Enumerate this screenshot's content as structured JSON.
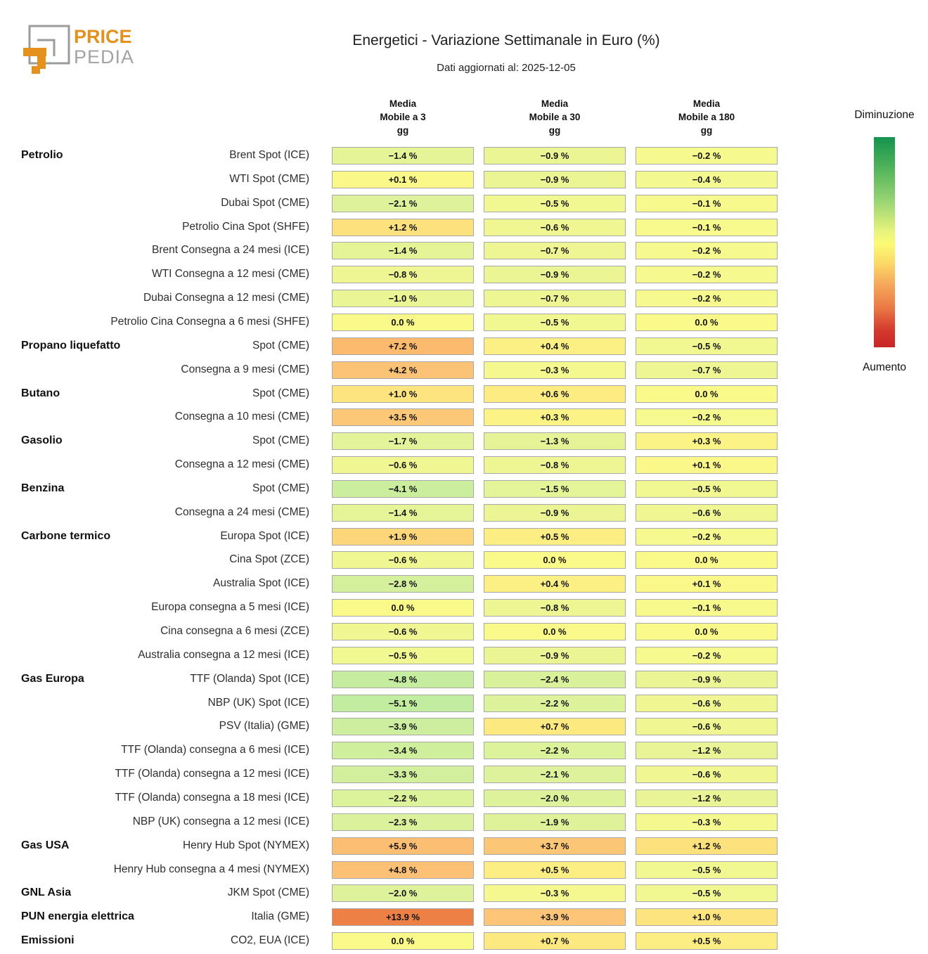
{
  "header": {
    "logo": {
      "brand_top": "PRICE",
      "brand_bottom": "PEDIA",
      "orange": "#e5911e",
      "gray": "#9b9b9b"
    },
    "title": "Energetici - Variazione Settimanale in Euro (%)",
    "subtitle": "Dati aggiornati al: 2025-12-05"
  },
  "legend": {
    "top_label": "Diminuzione",
    "bottom_label": "Aumento",
    "gradient_stops": [
      "#14934f 0%",
      "#4eb25a 14%",
      "#97d373 30%",
      "#e8f47c 45%",
      "#fbfa74 51%",
      "#fbd967 60%",
      "#f6a85a 70%",
      "#ea7a45 81%",
      "#d4392c 92%",
      "#c82526 100%"
    ]
  },
  "chart_data": {
    "type": "heatmap",
    "unit": "%",
    "columns": [
      "Media\nMobile a 3\ngg",
      "Media\nMobile a 30\ngg",
      "Media\nMobile a 180\ngg"
    ],
    "colormap": [
      [
        -8,
        "#a7e3a0"
      ],
      [
        -5,
        "#c3ec9f"
      ],
      [
        -3,
        "#d3f09d"
      ],
      [
        -2,
        "#def29b"
      ],
      [
        -1,
        "#eaf595"
      ],
      [
        -0.5,
        "#f1f791"
      ],
      [
        0,
        "#fafa8b"
      ],
      [
        0.5,
        "#fcee83"
      ],
      [
        1,
        "#fde47e"
      ],
      [
        2,
        "#fdd47a"
      ],
      [
        4,
        "#fcc477"
      ],
      [
        8,
        "#fbb76c"
      ],
      [
        11,
        "#f59d53"
      ],
      [
        14,
        "#ec7f44"
      ]
    ],
    "groups": [
      {
        "category": "Petrolio",
        "rows": [
          {
            "label": "Brent Spot (ICE)",
            "values": [
              -1.4,
              -0.9,
              -0.2
            ]
          },
          {
            "label": "WTI Spot (CME)",
            "values": [
              0.1,
              -0.9,
              -0.4
            ]
          },
          {
            "label": "Dubai Spot (CME)",
            "values": [
              -2.1,
              -0.5,
              -0.1
            ]
          },
          {
            "label": "Petrolio Cina Spot (SHFE)",
            "values": [
              1.2,
              -0.6,
              -0.1
            ]
          },
          {
            "label": "Brent Consegna a 24 mesi (ICE)",
            "values": [
              -1.4,
              -0.7,
              -0.2
            ]
          },
          {
            "label": "WTI Consegna a 12 mesi (CME)",
            "values": [
              -0.8,
              -0.9,
              -0.2
            ]
          },
          {
            "label": "Dubai Consegna a 12 mesi (CME)",
            "values": [
              -1.0,
              -0.7,
              -0.2
            ]
          },
          {
            "label": "Petrolio Cina Consegna a 6 mesi (SHFE)",
            "values": [
              0.0,
              -0.5,
              0.0
            ]
          }
        ]
      },
      {
        "category": "Propano liquefatto",
        "rows": [
          {
            "label": "Spot (CME)",
            "values": [
              7.2,
              0.4,
              -0.5
            ]
          },
          {
            "label": "Consegna a 9 mesi (CME)",
            "values": [
              4.2,
              -0.3,
              -0.7
            ]
          }
        ]
      },
      {
        "category": "Butano",
        "rows": [
          {
            "label": "Spot (CME)",
            "values": [
              1.0,
              0.6,
              0.0
            ]
          },
          {
            "label": "Consegna a 10 mesi (CME)",
            "values": [
              3.5,
              0.3,
              -0.2
            ]
          }
        ]
      },
      {
        "category": "Gasolio",
        "rows": [
          {
            "label": "Spot (CME)",
            "values": [
              -1.7,
              -1.3,
              0.3
            ]
          },
          {
            "label": "Consegna a 12 mesi (CME)",
            "values": [
              -0.6,
              -0.8,
              0.1
            ]
          }
        ]
      },
      {
        "category": "Benzina",
        "rows": [
          {
            "label": "Spot (CME)",
            "values": [
              -4.1,
              -1.5,
              -0.5
            ]
          },
          {
            "label": "Consegna a 24 mesi (CME)",
            "values": [
              -1.4,
              -0.9,
              -0.6
            ]
          }
        ]
      },
      {
        "category": "Carbone termico",
        "rows": [
          {
            "label": "Europa Spot (ICE)",
            "values": [
              1.9,
              0.5,
              -0.2
            ]
          },
          {
            "label": "Cina Spot (ZCE)",
            "values": [
              -0.6,
              0.0,
              0.0
            ]
          },
          {
            "label": "Australia Spot (ICE)",
            "values": [
              -2.8,
              0.4,
              0.1
            ]
          },
          {
            "label": "Europa consegna a 5 mesi (ICE)",
            "values": [
              0.0,
              -0.8,
              -0.1
            ]
          },
          {
            "label": "Cina consegna a 6 mesi (ZCE)",
            "values": [
              -0.6,
              0.0,
              0.0
            ]
          },
          {
            "label": "Australia consegna a 12 mesi (ICE)",
            "values": [
              -0.5,
              -0.9,
              -0.2
            ]
          }
        ]
      },
      {
        "category": "Gas Europa",
        "rows": [
          {
            "label": "TTF (Olanda) Spot (ICE)",
            "values": [
              -4.8,
              -2.4,
              -0.9
            ]
          },
          {
            "label": "NBP (UK) Spot (ICE)",
            "values": [
              -5.1,
              -2.2,
              -0.6
            ]
          },
          {
            "label": "PSV (Italia) (GME)",
            "values": [
              -3.9,
              0.7,
              -0.6
            ]
          },
          {
            "label": "TTF (Olanda) consegna a 6 mesi (ICE)",
            "values": [
              -3.4,
              -2.2,
              -1.2
            ]
          },
          {
            "label": "TTF (Olanda) consegna a 12 mesi (ICE)",
            "values": [
              -3.3,
              -2.1,
              -0.6
            ]
          },
          {
            "label": "TTF (Olanda) consegna a 18 mesi (ICE)",
            "values": [
              -2.2,
              -2.0,
              -1.2
            ]
          },
          {
            "label": "NBP (UK) consegna a 12 mesi (ICE)",
            "values": [
              -2.3,
              -1.9,
              -0.3
            ]
          }
        ]
      },
      {
        "category": "Gas USA",
        "rows": [
          {
            "label": "Henry Hub Spot (NYMEX)",
            "values": [
              5.9,
              3.7,
              1.2
            ]
          },
          {
            "label": "Henry Hub consegna a 4 mesi (NYMEX)",
            "values": [
              4.8,
              0.5,
              -0.5
            ]
          }
        ]
      },
      {
        "category": "GNL Asia",
        "rows": [
          {
            "label": "JKM Spot (CME)",
            "values": [
              -2.0,
              -0.3,
              -0.5
            ]
          }
        ]
      },
      {
        "category": "PUN energia elettrica",
        "rows": [
          {
            "label": "Italia (GME)",
            "values": [
              13.9,
              3.9,
              1.0
            ]
          }
        ]
      },
      {
        "category": "Emissioni",
        "rows": [
          {
            "label": "CO2, EUA (ICE)",
            "values": [
              0.0,
              0.7,
              0.5
            ]
          }
        ]
      }
    ]
  }
}
